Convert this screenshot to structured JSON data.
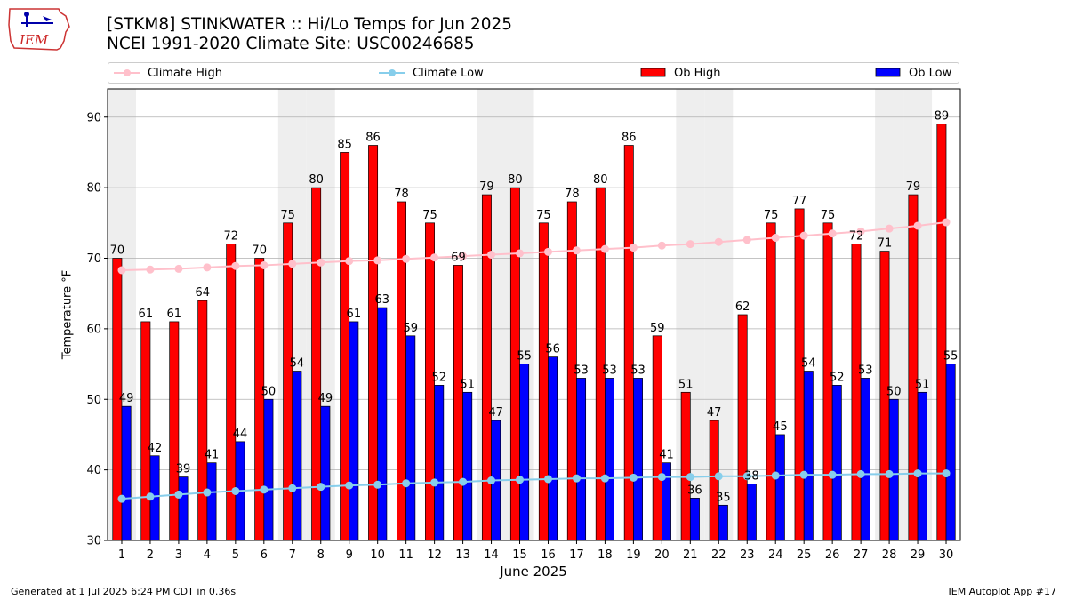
{
  "header": {
    "title_line1": "[STKM8] STINKWATER :: Hi/Lo Temps for Jun 2025",
    "title_line2": "NCEI 1991-2020 Climate Site: USC00246685",
    "logo_text": "IEM"
  },
  "legend": {
    "climate_high": "Climate High",
    "climate_low": "Climate Low",
    "ob_high": "Ob High",
    "ob_low": "Ob Low"
  },
  "footer": {
    "generated": "Generated at 1 Jul 2025 6:24 PM CDT in 0.36s",
    "app": "IEM Autoplot App #17"
  },
  "colors": {
    "ob_high": "#ff0000",
    "ob_low": "#0000ff",
    "climate_high": "#ffc0cb",
    "climate_low": "#87ceeb",
    "weekend_band": "#eeeeee",
    "grid": "#b0b0b0"
  },
  "chart_data": {
    "type": "bar",
    "title": "[STKM8] STINKWATER :: Hi/Lo Temps for Jun 2025",
    "subtitle": "NCEI 1991-2020 Climate Site: USC00246685",
    "xlabel": "June 2025",
    "ylabel": "Temperature °F",
    "ylim": [
      30,
      94
    ],
    "yticks": [
      30,
      40,
      50,
      60,
      70,
      80,
      90
    ],
    "grid": true,
    "legend_position": "top",
    "categories": [
      "1",
      "2",
      "3",
      "4",
      "5",
      "6",
      "7",
      "8",
      "9",
      "10",
      "11",
      "12",
      "13",
      "14",
      "15",
      "16",
      "17",
      "18",
      "19",
      "20",
      "21",
      "22",
      "23",
      "24",
      "25",
      "26",
      "27",
      "28",
      "29",
      "30"
    ],
    "weekend_days": [
      1,
      7,
      8,
      14,
      15,
      21,
      22,
      28,
      29
    ],
    "series": [
      {
        "name": "Ob High",
        "kind": "bar",
        "values": [
          70,
          61,
          61,
          64,
          72,
          70,
          75,
          80,
          85,
          86,
          78,
          75,
          69,
          79,
          80,
          75,
          78,
          80,
          86,
          59,
          51,
          47,
          62,
          75,
          77,
          75,
          72,
          71,
          79,
          89
        ]
      },
      {
        "name": "Ob Low",
        "kind": "bar",
        "values": [
          49,
          42,
          39,
          41,
          44,
          50,
          54,
          49,
          61,
          63,
          59,
          52,
          51,
          47,
          55,
          56,
          53,
          53,
          53,
          41,
          36,
          35,
          38,
          45,
          54,
          52,
          53,
          50,
          51,
          55
        ]
      },
      {
        "name": "Climate High",
        "kind": "line",
        "values": [
          68.3,
          68.4,
          68.5,
          68.7,
          68.9,
          69.0,
          69.2,
          69.4,
          69.6,
          69.7,
          69.9,
          70.1,
          70.3,
          70.5,
          70.7,
          70.9,
          71.1,
          71.3,
          71.5,
          71.8,
          72.0,
          72.3,
          72.6,
          72.9,
          73.2,
          73.5,
          73.8,
          74.2,
          74.6,
          75.1
        ]
      },
      {
        "name": "Climate Low",
        "kind": "line",
        "values": [
          35.9,
          36.2,
          36.5,
          36.8,
          37.0,
          37.2,
          37.4,
          37.6,
          37.8,
          37.9,
          38.1,
          38.2,
          38.3,
          38.5,
          38.6,
          38.7,
          38.8,
          38.8,
          38.9,
          39.0,
          39.0,
          39.1,
          39.1,
          39.2,
          39.3,
          39.3,
          39.4,
          39.4,
          39.5,
          39.5
        ]
      }
    ]
  }
}
